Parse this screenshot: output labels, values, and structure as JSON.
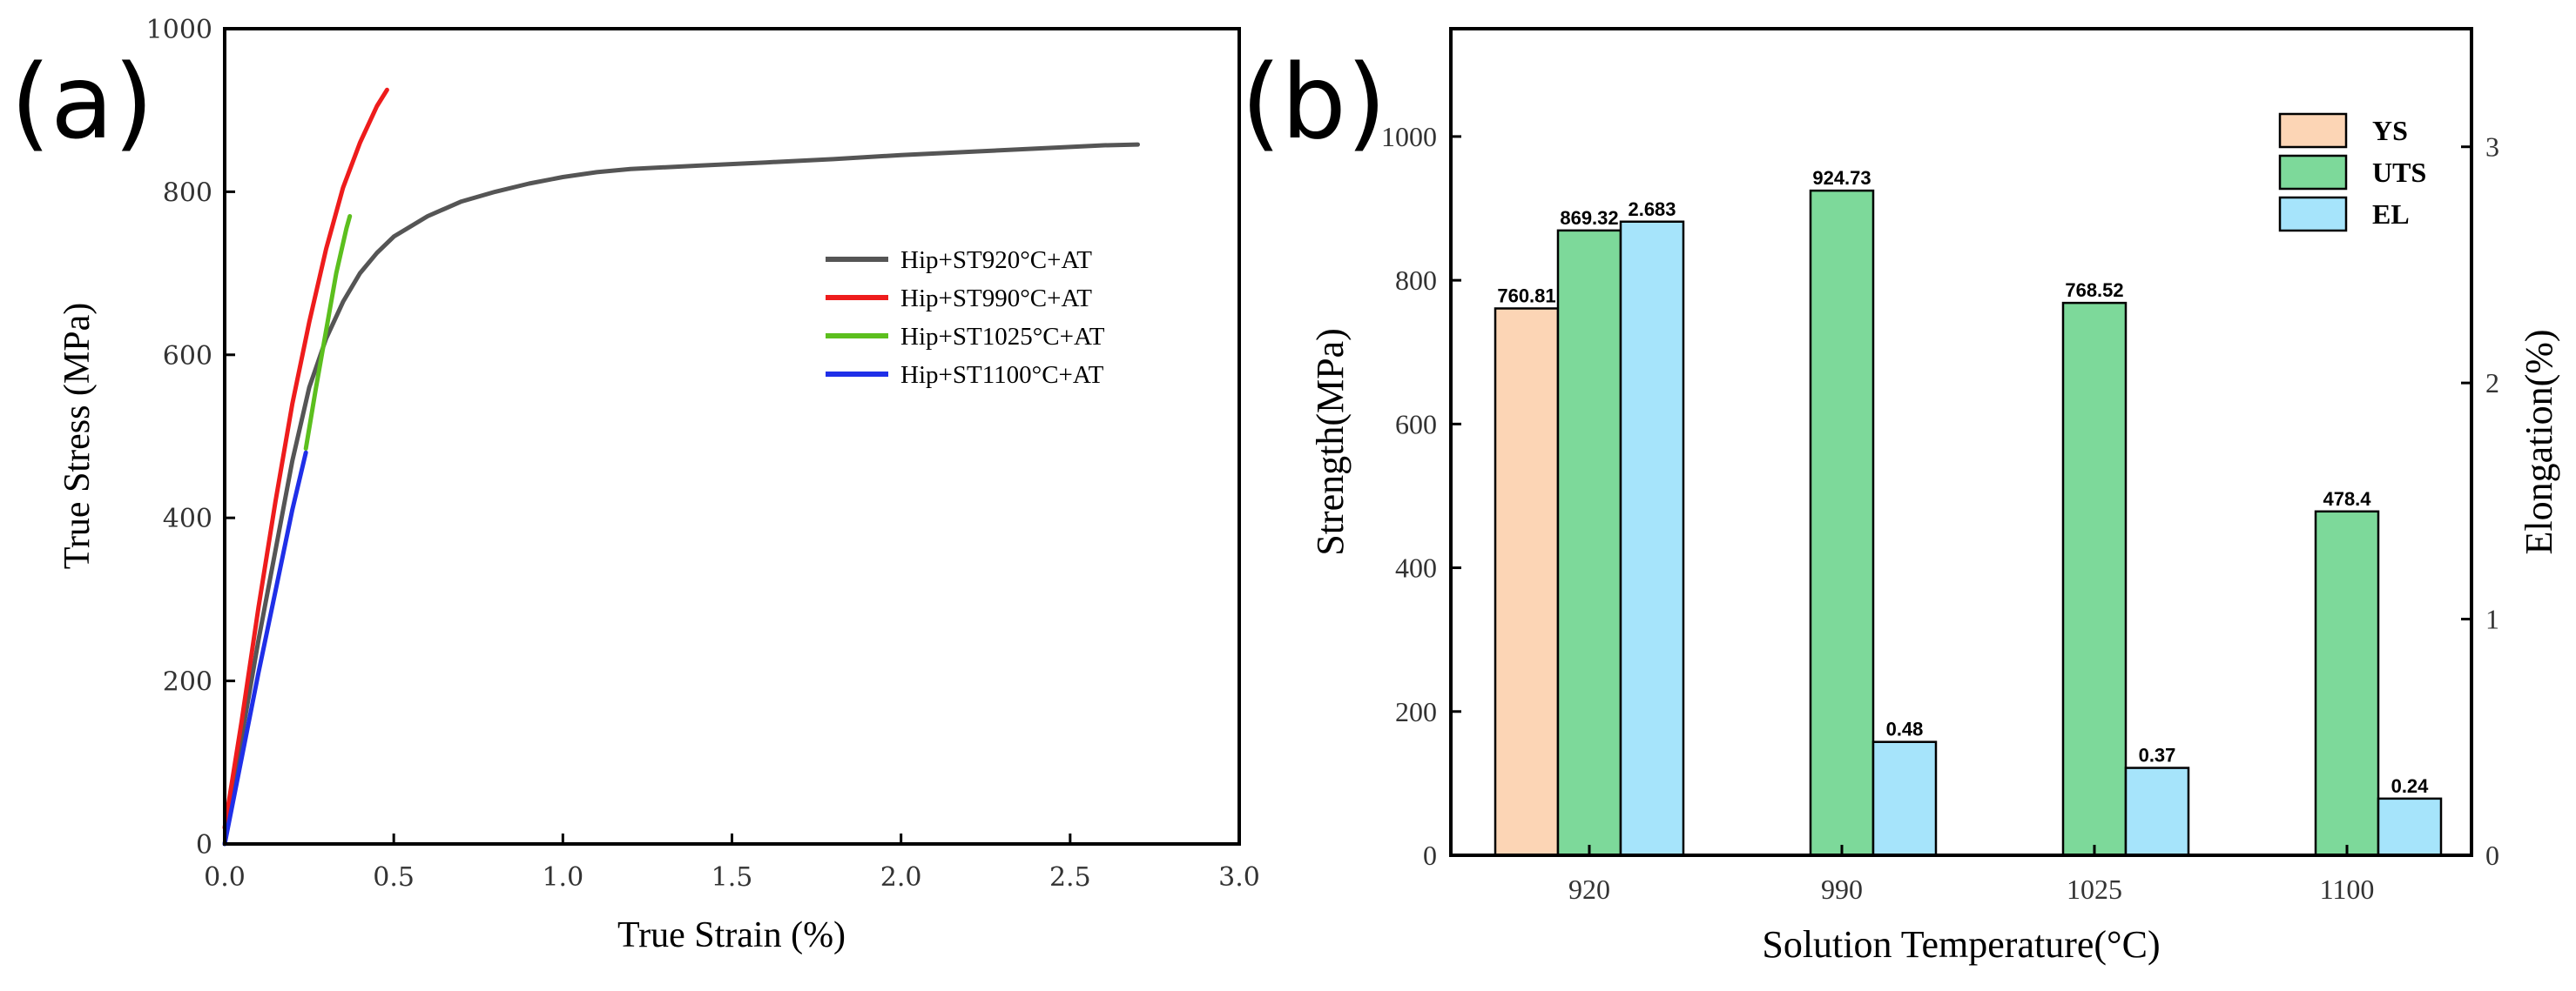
{
  "panels": {
    "a_label": "(a)",
    "b_label": "(b)"
  },
  "chart_data": [
    {
      "type": "line",
      "xlabel": "True Strain (%)",
      "ylabel": "True Stress (MPa)",
      "xlim": [
        0,
        3.0
      ],
      "ylim": [
        0,
        1000
      ],
      "x_ticks": [
        "0.0",
        "0.5",
        "1.0",
        "1.5",
        "2.0",
        "2.5",
        "3.0"
      ],
      "y_ticks": [
        "0",
        "200",
        "400",
        "600",
        "800",
        "1000"
      ],
      "legend_position": "center-right",
      "series": [
        {
          "name": "Hip+ST920°C+AT",
          "color": "#555555",
          "x": [
            0,
            0.05,
            0.1,
            0.15,
            0.2,
            0.25,
            0.3,
            0.35,
            0.4,
            0.45,
            0.5,
            0.6,
            0.7,
            0.8,
            0.9,
            1.0,
            1.1,
            1.2,
            1.4,
            1.6,
            1.8,
            2.0,
            2.2,
            2.4,
            2.6,
            2.7
          ],
          "y": [
            0,
            130,
            250,
            360,
            470,
            560,
            620,
            665,
            700,
            725,
            745,
            770,
            788,
            800,
            810,
            818,
            824,
            828,
            832,
            836,
            840,
            845,
            849,
            853,
            857,
            858
          ]
        },
        {
          "name": "Hip+ST990°C+AT",
          "color": "#ee1c1c",
          "x": [
            0,
            0.05,
            0.1,
            0.15,
            0.2,
            0.25,
            0.3,
            0.35,
            0.4,
            0.45,
            0.48
          ],
          "y": [
            20,
            150,
            290,
            420,
            540,
            640,
            730,
            805,
            860,
            905,
            925
          ]
        },
        {
          "name": "Hip+ST1025°C+AT",
          "color": "#5cbf1e",
          "x": [
            0.24,
            0.27,
            0.3,
            0.33,
            0.36,
            0.37
          ],
          "y": [
            485,
            560,
            630,
            700,
            755,
            770
          ]
        },
        {
          "name": "Hip+ST1100°C+AT",
          "color": "#1f2fe8",
          "x": [
            0,
            0.05,
            0.1,
            0.15,
            0.2,
            0.24
          ],
          "y": [
            0,
            105,
            210,
            310,
            410,
            480
          ]
        }
      ]
    },
    {
      "type": "bar",
      "xlabel": "Solution Temperature(°C)",
      "ylabel": "Strength(MPa)",
      "y2label": "Elongation(%)",
      "categories": [
        "920",
        "990",
        "1025",
        "1100"
      ],
      "ylim": [
        0,
        1150
      ],
      "y2lim": [
        0,
        3.5
      ],
      "y_ticks": [
        "0",
        "200",
        "400",
        "600",
        "800",
        "1000"
      ],
      "y2_ticks": [
        "0",
        "1",
        "2",
        "3"
      ],
      "legend_position": "top-right",
      "series": [
        {
          "name": "YS",
          "axis": "left",
          "color": "#fcd5b5",
          "values": [
            760.81,
            null,
            null,
            null
          ],
          "labels": [
            "760.81",
            "",
            "",
            ""
          ]
        },
        {
          "name": "UTS",
          "axis": "left",
          "color": "#7dd99a",
          "values": [
            869.32,
            924.73,
            768.52,
            478.4
          ],
          "labels": [
            "869.32",
            "924.73",
            "768.52",
            "478.4"
          ]
        },
        {
          "name": "EL",
          "axis": "right",
          "color": "#a6e4fb",
          "values": [
            2.683,
            0.48,
            0.37,
            0.24
          ],
          "labels": [
            "2.683",
            "0.48",
            "0.37",
            "0.24"
          ]
        }
      ]
    }
  ]
}
